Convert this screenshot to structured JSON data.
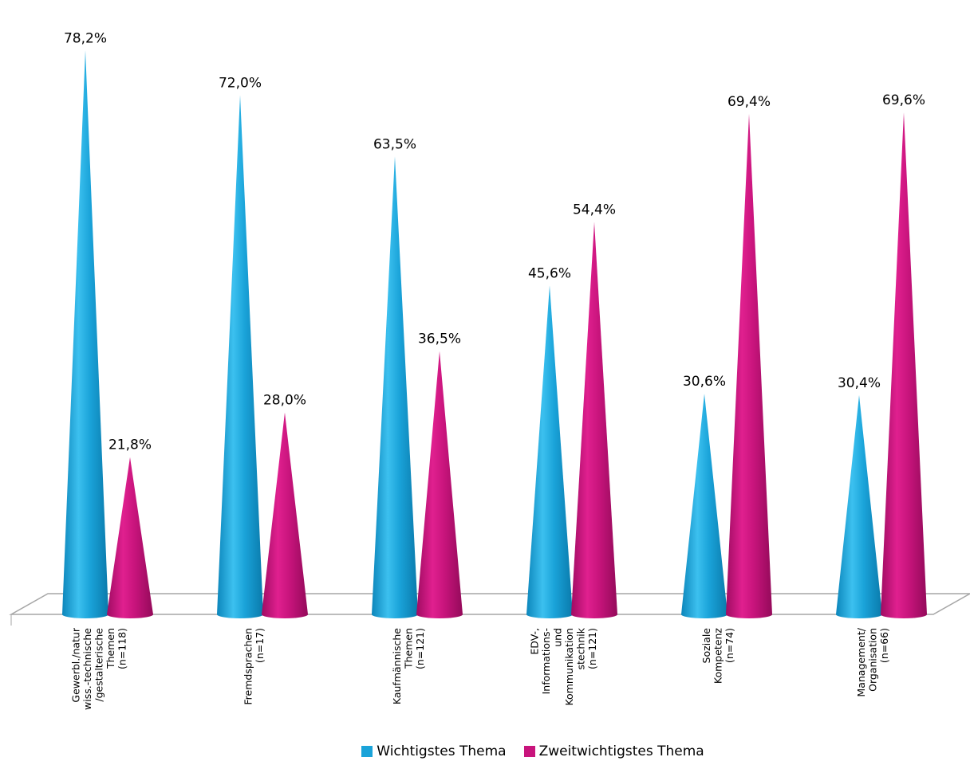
{
  "chart_data": {
    "type": "bar",
    "style": "3d-cone",
    "ylim": [
      0,
      80
    ],
    "grid": false,
    "legend_position": "bottom",
    "categories": [
      [
        "Gewerbl./natur",
        "wiss.-technische",
        "/gestalterische",
        "Themen",
        "(n=118)"
      ],
      [
        "Fremdsprachen",
        "(n=17)"
      ],
      [
        "Kaufmännische",
        "Themen",
        "(n=121)"
      ],
      [
        "EDV-,",
        "Informations-",
        "und",
        "Kommunikation",
        "stechnik",
        "(n=121)"
      ],
      [
        "Soziale",
        "Kompetenz",
        "(n=74)"
      ],
      [
        "Management/",
        "Organisation",
        "(n=66)"
      ]
    ],
    "series": [
      {
        "name": "Wichtigstes Thema",
        "color": "#1aa3d9",
        "values": [
          78.2,
          72.0,
          63.5,
          45.6,
          30.6,
          30.4
        ],
        "labels": [
          "78,2%",
          "72,0%",
          "63,5%",
          "45,6%",
          "30,6%",
          "30,4%"
        ]
      },
      {
        "name": "Zweitwichtigstes Thema",
        "color": "#c8147c",
        "values": [
          21.8,
          28.0,
          36.5,
          54.4,
          69.4,
          69.6
        ],
        "labels": [
          "21,8%",
          "28,0%",
          "36,5%",
          "54,4%",
          "69,4%",
          "69,6%"
        ]
      }
    ]
  }
}
